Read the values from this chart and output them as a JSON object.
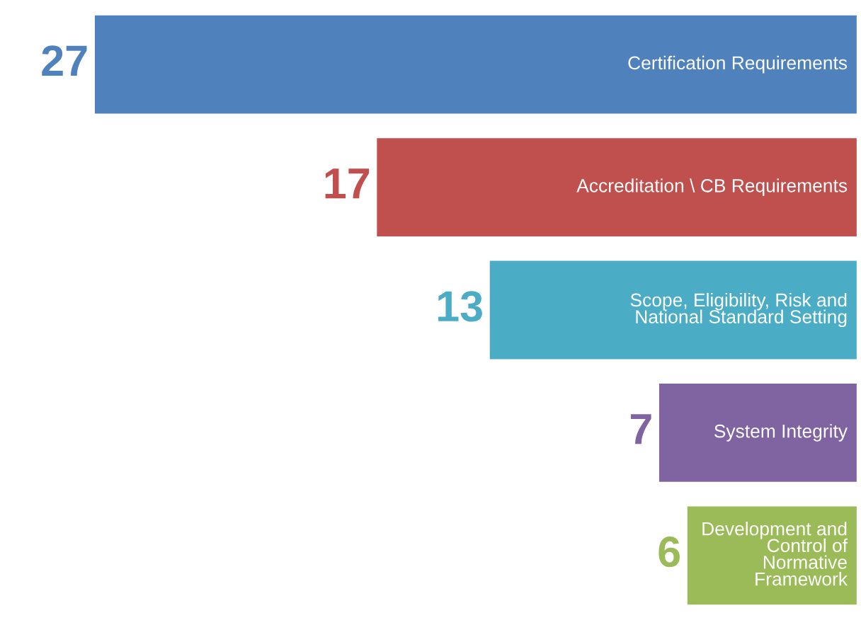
{
  "chart_data": {
    "type": "bar",
    "orientation": "horizontal",
    "categories": [
      "Certification Requirements",
      "Accreditation \\ CB Requirements",
      "Scope, Eligibility, Risk and\nNational Standard Setting",
      "System Integrity",
      "Development and\nControl of\nNormative\nFramework"
    ],
    "values": [
      27,
      17,
      13,
      7,
      6
    ],
    "colors": [
      "#4f81bd",
      "#c0504d",
      "#4bacc6",
      "#8064a2",
      "#9bbb59"
    ],
    "data_labels": true
  }
}
